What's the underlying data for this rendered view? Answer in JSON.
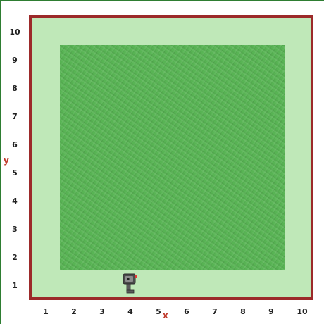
{
  "grid": {
    "x_ticks": [
      "1",
      "2",
      "3",
      "4",
      "5",
      "6",
      "7",
      "8",
      "9",
      "10"
    ],
    "y_ticks": [
      "1",
      "2",
      "3",
      "4",
      "5",
      "6",
      "7",
      "8",
      "9",
      "10"
    ],
    "x_axis_label": "x",
    "y_axis_label": "y",
    "inner_lawn": {
      "from": [
        2,
        2
      ],
      "to": [
        9,
        9
      ]
    }
  },
  "robot": {
    "icon": "robot-icon",
    "position": {
      "x": 4,
      "y": 1
    }
  },
  "colors": {
    "border": "#9c2a2a",
    "outer_grass": "#bfe8b8",
    "inner_grass": "#58b454",
    "axis_label": "#c0392b",
    "robot_body": "#4a4a4a"
  }
}
